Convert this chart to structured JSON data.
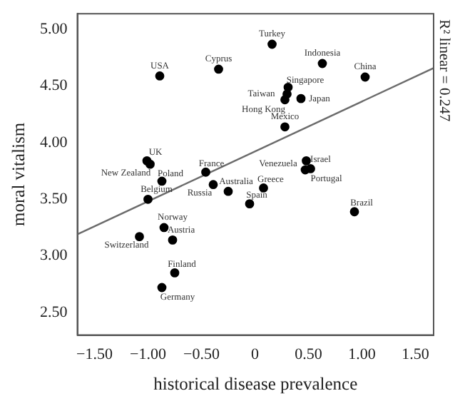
{
  "chart_data": {
    "type": "scatter",
    "xlabel": "historical disease prevalence",
    "ylabel": "moral vitalism",
    "xlim": [
      -1.66,
      1.67
    ],
    "ylim": [
      2.3,
      5.14
    ],
    "xticks": [
      {
        "value": -1.5,
        "label": "−1.50"
      },
      {
        "value": -1,
        "label": "−1.00"
      },
      {
        "value": -0.5,
        "label": "−0.50"
      },
      0,
      {
        "value": 0.5,
        "label": "0.50"
      },
      {
        "value": 1,
        "label": "1.00"
      },
      {
        "value": 1.5,
        "label": "1.50"
      }
    ],
    "yticks": [
      {
        "value": 2.5,
        "label": "2.50"
      },
      {
        "value": 3,
        "label": "3.00"
      },
      {
        "value": 3.5,
        "label": "3.50"
      },
      {
        "value": 4,
        "label": "4.00"
      },
      {
        "value": 4.5,
        "label": "4.50"
      },
      {
        "value": 5,
        "label": "5.00"
      }
    ],
    "grid": false,
    "legend": false,
    "marker": "circle",
    "series": [
      {
        "type": "scatter",
        "color": "#000000",
        "x": [
          0.16,
          0.63,
          -0.89,
          -0.34,
          1.03,
          0.31,
          0.3,
          0.28,
          0.43,
          0.28,
          -1.01,
          -0.98,
          -0.46,
          0.47,
          0.48,
          0.52,
          -0.87,
          -0.39,
          -0.25,
          0.08,
          -0.05,
          -1.0,
          0.93,
          -0.85,
          -1.08,
          -0.77,
          -0.75,
          -0.87
        ],
        "values": [
          4.87,
          4.7,
          4.59,
          4.65,
          4.58,
          4.49,
          4.43,
          4.38,
          4.39,
          4.14,
          3.84,
          3.81,
          3.74,
          3.76,
          3.84,
          3.77,
          3.66,
          3.63,
          3.57,
          3.6,
          3.46,
          3.5,
          3.39,
          3.25,
          3.17,
          3.14,
          2.85,
          2.72
        ]
      },
      {
        "type": "line",
        "color": "#6b6b6b",
        "line_style": "solid",
        "marker": "none",
        "x": [
          -1.66,
          1.67
        ],
        "values": [
          3.19,
          4.66
        ]
      }
    ],
    "annotations": [
      "R² linear = 0.247",
      {
        "text": "Turkey",
        "x": 0.16,
        "y": 4.87
      },
      {
        "text": "Indonesia",
        "x": 0.63,
        "y": 4.7
      },
      {
        "text": "USA",
        "x": -0.89,
        "y": 4.59
      },
      {
        "text": "Cyprus",
        "x": -0.34,
        "y": 4.65
      },
      {
        "text": "China",
        "x": 1.03,
        "y": 4.58
      },
      {
        "text": "Singapore",
        "x": 0.31,
        "y": 4.49
      },
      {
        "text": "Taiwan",
        "x": 0.3,
        "y": 4.43
      },
      {
        "text": "Hong Kong",
        "x": 0.28,
        "y": 4.38
      },
      {
        "text": "Japan",
        "x": 0.43,
        "y": 4.39
      },
      {
        "text": "Mexico",
        "x": 0.28,
        "y": 4.14
      },
      {
        "text": "UK",
        "x": -1.01,
        "y": 3.84
      },
      {
        "text": "New Zealand",
        "x": -0.98,
        "y": 3.81
      },
      {
        "text": "France",
        "x": -0.46,
        "y": 3.74
      },
      {
        "text": "Venezuela",
        "x": 0.47,
        "y": 3.76
      },
      {
        "text": "Israel",
        "x": 0.48,
        "y": 3.84
      },
      {
        "text": "Portugal",
        "x": 0.52,
        "y": 3.77
      },
      {
        "text": "Poland",
        "x": -0.87,
        "y": 3.66
      },
      {
        "text": "Australia",
        "x": -0.39,
        "y": 3.63
      },
      {
        "text": "Russia",
        "x": -0.25,
        "y": 3.57
      },
      {
        "text": "Greece",
        "x": 0.08,
        "y": 3.6
      },
      {
        "text": "Spain",
        "x": -0.05,
        "y": 3.46
      },
      {
        "text": "Belgium",
        "x": -1.0,
        "y": 3.5
      },
      {
        "text": "Brazil",
        "x": 0.93,
        "y": 3.39
      },
      {
        "text": "Norway",
        "x": -0.85,
        "y": 3.25
      },
      {
        "text": "Switzerland",
        "x": -1.08,
        "y": 3.17
      },
      {
        "text": "Austria",
        "x": -0.77,
        "y": 3.14
      },
      {
        "text": "Finland",
        "x": -0.75,
        "y": 2.85
      },
      {
        "text": "Germany",
        "x": -0.87,
        "y": 2.72
      }
    ]
  }
}
